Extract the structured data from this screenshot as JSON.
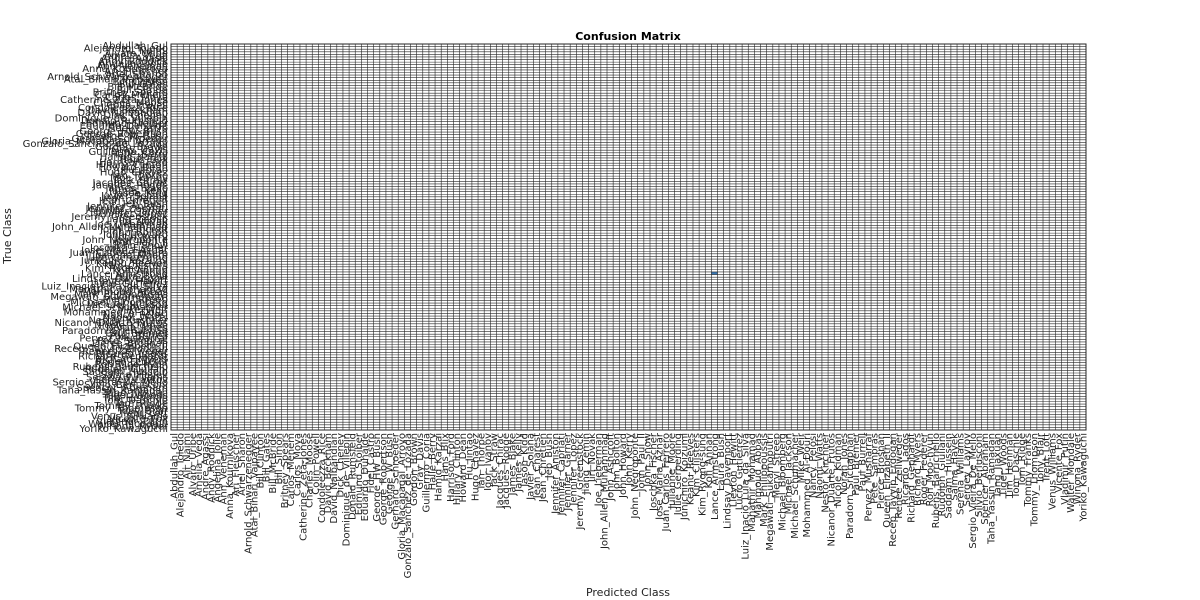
{
  "chart_data": {
    "type": "heatmap",
    "title": "Confusion Matrix",
    "xlabel": "Predicted Class",
    "ylabel": "True Class",
    "colors": {
      "empty": "#ffffff",
      "grid": "#262626",
      "highlight": "#3a78b5"
    },
    "grid": true,
    "values_note": "",
    "highlighted_cells": [
      {
        "true": "Lance_Armstrong",
        "predicted": "Lance_Armstrong"
      }
    ],
    "labels": [
      "Abdullah_Gul",
      "Alejandro_Toledo",
      "Ali_Naimi",
      "Alvaro_Uribe",
      "Amelia_Vega",
      "Andre_Agassi",
      "Andy_Roddick",
      "Angelina_Jolie",
      "Ann_Veneman",
      "Anna_Kournikova",
      "Ari_Fleischer",
      "Ariel_Sharon",
      "Arnold_Schwarzenegger",
      "Atal_Bihari_Vajpayee",
      "Bill_Clinton",
      "Bill_Gates",
      "Bill_McBride",
      "Bill_Simon",
      "Britney_Spears",
      "Carlos_Menem",
      "Carlos_Moya",
      "Catherine_Zeta-Jones",
      "Charles_Moose",
      "Colin_Powell",
      "Condoleezza_Rice",
      "David_Beckham",
      "David_Nalbandian",
      "Dick_Cheney",
      "Dominique_de_Villepin",
      "Donald_Rumsfeld",
      "Edmund_Stoiber",
      "Eduardo_Duhalde",
      "Fidel_Castro",
      "George_HW_Bush",
      "George_Robertson",
      "George_W_Bush",
      "Gerhard_Schroeder",
      "Gloria_Macapagal_Arroyo",
      "Gonzalo_Sanchez_de_Lozada",
      "Gordon_Brown",
      "Gray_Davis",
      "Guillermo_Coria",
      "Halle_Berry",
      "Hamid_Karzai",
      "Hans_Blix",
      "Harrison_Ford",
      "Hillary_Clinton",
      "Howard_Dean",
      "Hu_Jintao",
      "Hugo_Chavez",
      "Ian_Thorpe",
      "Igor_Ivanov",
      "Jack_Straw",
      "Jacques_Chirac",
      "Jacques_Rogge",
      "James_Blake",
      "James_Kelly",
      "Jason_Kidd",
      "Javier_Solana",
      "Jean_Charest",
      "Jean_Chretien",
      "Jeb_Bush",
      "Jennifer_Aniston",
      "Jennifer_Capriati",
      "Jennifer_Garner",
      "Jennifer_Lopez",
      "Jeremy_Greenstock",
      "Jiang_Zemin",
      "Jiri_Novak",
      "Joe_Lieberman",
      "John_Allen_Muhammad",
      "John_Ashcroft",
      "John_Bolton",
      "John_Howard",
      "John_Kerry",
      "John_Negroponte",
      "John_Paul_II",
      "John_Snow",
      "Joschka_Fischer",
      "Jose_Maria_Aznar",
      "Juan_Carlos_Ferrero",
      "Julianne_Moore",
      "Julie_Gerberding",
      "Junichiro_Koizumi",
      "Keanu_Reeves",
      "Kim_Clijsters",
      "Kim_Ryong-sung",
      "Kofi_Annan",
      "Lance_Armstrong",
      "Laura_Bush",
      "Lindsay_Davenport",
      "Lleyton_Hewitt",
      "Lucio_Gutierrez",
      "Luiz_Inacio_Lula_da_Silva",
      "Mahathir_Mohamad",
      "Mahmoud_Abbas",
      "Mark_Philippoussis",
      "Megawati_Sukarnoputri",
      "Meryl_Streep",
      "Michael_Bloomberg",
      "Michael_Jackson",
      "Michael_Schumacher",
      "Mike_Weir",
      "Mohammed_Al-Douri",
      "Nancy_Pelosi",
      "Naomi_Watts",
      "Nestor_Kirchner",
      "Nicanor_Duarte_Frutos",
      "Nicole_Kidman",
      "Norah_Jones",
      "Paradorn_Srichaphan",
      "Paul_Bremer",
      "Paul_Burrell",
      "Pervez_Musharraf",
      "Pete_Sampras",
      "Pierce_Brosnan",
      "Queen_Elizabeth_II",
      "Recep_Tayyip_Erdogan",
      "Renee_Zellweger",
      "Ricardo_Lagos",
      "Richard_Gephardt",
      "Richard_Myers",
      "Roger_Federer",
      "Roh_Moo-hyun",
      "Rubens_Barrichello",
      "Rudolph_Giuliani",
      "Saddam_Hussein",
      "Salma_Hayek",
      "Serena_Williams",
      "Sergey_Lavrov",
      "Sergio_Vieira_De_Mello",
      "Silvio_Berlusconi",
      "Spencer_Abraham",
      "Taha_Yassin_Ramadan",
      "Tang_Jiaxuan",
      "Tiger_Woods",
      "Tim_Henman",
      "Tom_Daschle",
      "Tom_Ridge",
      "Tommy_Franks",
      "Tommy_Thompson",
      "Tony_Blair",
      "Trent_Lott",
      "Venus_Williams",
      "Vicente_Fox",
      "Vladimir_Putin",
      "Walter_Mondale",
      "Winona_Ryder",
      "Yoriko_Kawaguchi"
    ]
  }
}
